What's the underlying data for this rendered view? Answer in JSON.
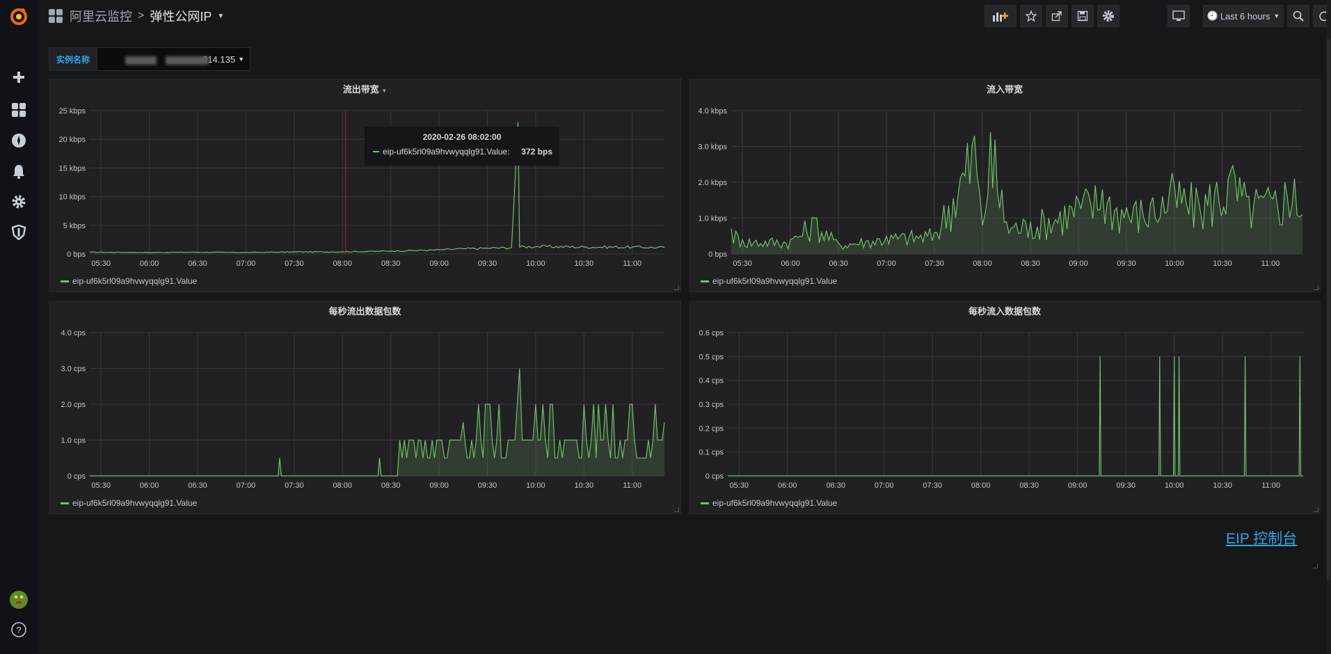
{
  "breadcrumb": {
    "folder": "阿里云监控",
    "separator": ">",
    "title": "弹性公网IP"
  },
  "toolbar": {
    "time_range": "Last 6 hours"
  },
  "variable": {
    "label": "实例名称",
    "value": "?14.135"
  },
  "tooltip": {
    "time": "2020-02-26 08:02:00",
    "series": "eip-uf6k5rl09a9hvwyqqlg91.Value:",
    "value": "372 bps"
  },
  "link": {
    "label": "EIP 控制台"
  },
  "colors": {
    "line": "#73bf69",
    "fill": "rgba(115,191,105,0.18)",
    "grid": "#38393d",
    "text": "#c7c7c7"
  },
  "panels": [
    {
      "title": "流出带宽",
      "legend": "eip-uf6k5rl09a9hvwyqqlg91.Value",
      "chart_data": {
        "type": "line",
        "y_ticks": [
          "25 kbps",
          "20 kbps",
          "15 kbps",
          "10 kbps",
          "5 kbps",
          "0 bps"
        ],
        "ylim": [
          0,
          25000
        ],
        "x_ticks": [
          "05:30",
          "06:00",
          "06:30",
          "07:00",
          "07:30",
          "08:00",
          "08:30",
          "09:00",
          "09:30",
          "10:00",
          "10:30",
          "11:00"
        ],
        "x_range": [
          "05:23",
          "11:20"
        ],
        "series": [
          {
            "name": "eip-uf6k5rl09a9hvwyqqlg91.Value",
            "points": [
              [
                "05:23",
                300
              ],
              [
                "06:00",
                250
              ],
              [
                "06:30",
                300
              ],
              [
                "07:00",
                250
              ],
              [
                "07:30",
                350
              ],
              [
                "08:00",
                372
              ],
              [
                "08:30",
                500
              ],
              [
                "09:00",
                700
              ],
              [
                "09:15",
                900
              ],
              [
                "09:30",
                1000
              ],
              [
                "09:45",
                1100
              ],
              [
                "09:49",
                23000
              ],
              [
                "09:50",
                1200
              ],
              [
                "10:00",
                1300
              ],
              [
                "10:30",
                1200
              ],
              [
                "11:00",
                1200
              ],
              [
                "11:20",
                1100
              ]
            ]
          }
        ]
      }
    },
    {
      "title": "流入带宽",
      "legend": "eip-uf6k5rl09a9hvwyqqlg91.Value",
      "chart_data": {
        "type": "area",
        "y_ticks": [
          "4.0 kbps",
          "3.0 kbps",
          "2.0 kbps",
          "1.0 kbps",
          "0 bps"
        ],
        "ylim": [
          0,
          4000
        ],
        "x_ticks": [
          "05:30",
          "06:00",
          "06:30",
          "07:00",
          "07:30",
          "08:00",
          "08:30",
          "09:00",
          "09:30",
          "10:00",
          "10:30",
          "11:00"
        ],
        "x_range": [
          "05:23",
          "11:20"
        ],
        "series": [
          {
            "name": "eip-uf6k5rl09a9hvwyqqlg91.Value",
            "points": [
              [
                "05:23",
                700
              ],
              [
                "05:30",
                400
              ],
              [
                "06:00",
                400
              ],
              [
                "06:15",
                1000
              ],
              [
                "06:30",
                300
              ],
              [
                "07:00",
                500
              ],
              [
                "07:30",
                600
              ],
              [
                "07:55",
                3300
              ],
              [
                "08:00",
                800
              ],
              [
                "08:05",
                3400
              ],
              [
                "08:15",
                900
              ],
              [
                "08:30",
                900
              ],
              [
                "09:00",
                1500
              ],
              [
                "09:15",
                1800
              ],
              [
                "09:30",
                1300
              ],
              [
                "09:45",
                1400
              ],
              [
                "10:00",
                1900
              ],
              [
                "10:15",
                1500
              ],
              [
                "10:35",
                2300
              ],
              [
                "10:45",
                1600
              ],
              [
                "11:00",
                1600
              ],
              [
                "11:15",
                2100
              ],
              [
                "11:20",
                1100
              ]
            ]
          }
        ]
      }
    },
    {
      "title": "每秒流出数据包数",
      "legend": "eip-uf6k5rl09a9hvwyqqlg91.Value",
      "chart_data": {
        "type": "area",
        "y_ticks": [
          "4.0 cps",
          "3.0 cps",
          "2.0 cps",
          "1.0 cps",
          "0 cps"
        ],
        "ylim": [
          0,
          4
        ],
        "x_ticks": [
          "05:30",
          "06:00",
          "06:30",
          "07:00",
          "07:30",
          "08:00",
          "08:30",
          "09:00",
          "09:30",
          "10:00",
          "10:30",
          "11:00"
        ],
        "x_range": [
          "05:23",
          "11:20"
        ],
        "series": [
          {
            "name": "eip-uf6k5rl09a9hvwyqqlg91.Value",
            "points": [
              [
                "05:23",
                0
              ],
              [
                "07:20",
                0
              ],
              [
                "07:21",
                0.5
              ],
              [
                "07:22",
                0
              ],
              [
                "08:22",
                0
              ],
              [
                "08:23",
                0.5
              ],
              [
                "08:24",
                0
              ],
              [
                "08:50",
                0.5
              ],
              [
                "09:00",
                1
              ],
              [
                "09:05",
                0.5
              ],
              [
                "09:10",
                1
              ],
              [
                "09:15",
                1.5
              ],
              [
                "09:16",
                1
              ],
              [
                "09:50",
                3
              ],
              [
                "09:55",
                1
              ],
              [
                "10:00",
                2
              ],
              [
                "10:15",
                1
              ],
              [
                "10:30",
                2
              ],
              [
                "10:45",
                1
              ],
              [
                "11:00",
                2
              ],
              [
                "11:10",
                1
              ],
              [
                "11:20",
                1.5
              ]
            ]
          }
        ]
      }
    },
    {
      "title": "每秒流入数据包数",
      "legend": "eip-uf6k5rl09a9hvwyqqlg91.Value",
      "chart_data": {
        "type": "line",
        "y_ticks": [
          "0.6 cps",
          "0.5 cps",
          "0.4 cps",
          "0.3 cps",
          "0.2 cps",
          "0.1 cps",
          "0 cps"
        ],
        "ylim": [
          0,
          0.6
        ],
        "x_ticks": [
          "05:30",
          "06:00",
          "06:30",
          "07:00",
          "07:30",
          "08:00",
          "08:30",
          "09:00",
          "09:30",
          "10:00",
          "10:30",
          "11:00"
        ],
        "x_range": [
          "05:23",
          "11:20"
        ],
        "series": [
          {
            "name": "eip-uf6k5rl09a9hvwyqqlg91.Value",
            "spikes": [
              [
                "09:14",
                0.5
              ],
              [
                "09:51",
                0.5
              ],
              [
                "10:00",
                0.5
              ],
              [
                "10:03",
                0.5
              ],
              [
                "10:44",
                0.5
              ],
              [
                "11:18",
                0.5
              ]
            ]
          }
        ]
      }
    }
  ]
}
